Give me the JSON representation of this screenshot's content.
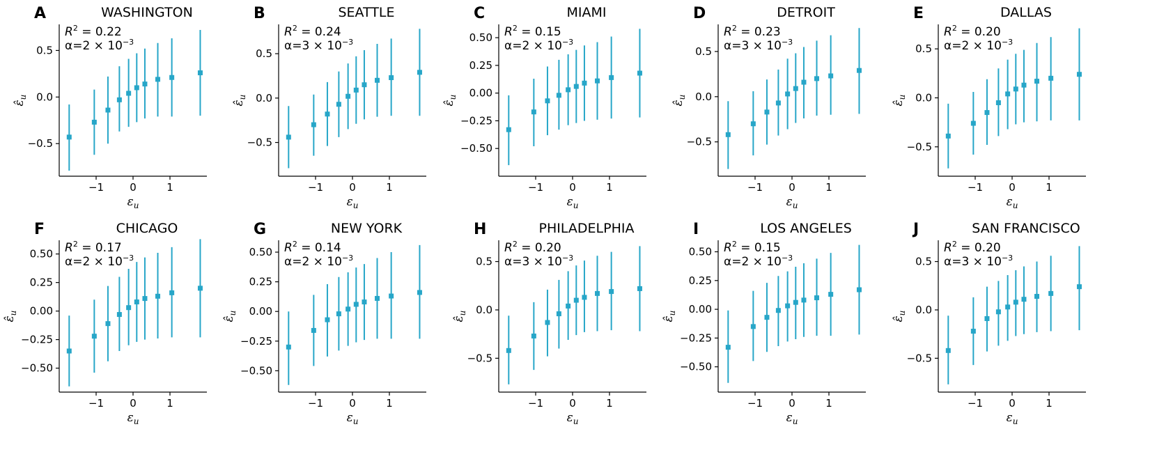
{
  "figure": {
    "marker_color": "#27a6c8",
    "xlabel_base": "ε",
    "xlabel_sub": "u",
    "ylabel_base": "ε̂",
    "ylabel_sub": "u",
    "r2_prefix": "R",
    "r2_exp": "2",
    "alpha_prefix": "α=",
    "alpha_mid": " × 10",
    "alpha_exp": "−3"
  },
  "chart_data": [
    {
      "type": "scatter",
      "letter": "A",
      "title": "WASHINGTON",
      "r2": "= 0.22",
      "alpha_mant": "2",
      "xlim": [
        -2.0,
        2.0
      ],
      "ylim": [
        -0.85,
        0.78
      ],
      "xticks": [
        -1,
        0,
        1
      ],
      "xtick_labels": [
        "−1",
        "0",
        "1"
      ],
      "yticks": [
        -0.5,
        0.0,
        0.5
      ],
      "ytick_labels": [
        "−0.5",
        "0.0",
        "0.5"
      ],
      "x": [
        -1.73,
        -1.05,
        -0.68,
        -0.37,
        -0.12,
        0.1,
        0.32,
        0.67,
        1.05,
        1.82
      ],
      "y": [
        -0.43,
        -0.27,
        -0.14,
        -0.03,
        0.04,
        0.1,
        0.14,
        0.19,
        0.21,
        0.26
      ],
      "yerr_low": [
        -0.79,
        -0.62,
        -0.5,
        -0.37,
        -0.32,
        -0.27,
        -0.23,
        -0.21,
        -0.21,
        -0.2
      ],
      "yerr_high": [
        -0.08,
        0.08,
        0.22,
        0.33,
        0.41,
        0.47,
        0.52,
        0.58,
        0.63,
        0.72
      ]
    },
    {
      "type": "scatter",
      "letter": "B",
      "title": "SEATTLE",
      "r2": "= 0.24",
      "alpha_mant": "3",
      "xlim": [
        -2.0,
        2.0
      ],
      "ylim": [
        -0.88,
        0.83
      ],
      "xticks": [
        -1,
        0,
        1
      ],
      "xtick_labels": [
        "−1",
        "0",
        "1"
      ],
      "yticks": [
        -0.5,
        0.0,
        0.5
      ],
      "ytick_labels": [
        "−0.5",
        "0.0",
        "0.5"
      ],
      "x": [
        -1.73,
        -1.05,
        -0.68,
        -0.37,
        -0.12,
        0.1,
        0.32,
        0.67,
        1.05,
        1.82
      ],
      "y": [
        -0.44,
        -0.3,
        -0.18,
        -0.07,
        0.02,
        0.09,
        0.15,
        0.2,
        0.23,
        0.29
      ],
      "yerr_low": [
        -0.79,
        -0.65,
        -0.54,
        -0.44,
        -0.35,
        -0.29,
        -0.24,
        -0.21,
        -0.2,
        -0.2
      ],
      "yerr_high": [
        -0.09,
        0.04,
        0.18,
        0.3,
        0.39,
        0.47,
        0.54,
        0.61,
        0.67,
        0.78
      ]
    },
    {
      "type": "scatter",
      "letter": "C",
      "title": "MIAMI",
      "r2": "= 0.15",
      "alpha_mant": "2",
      "xlim": [
        -2.0,
        2.0
      ],
      "ylim": [
        -0.75,
        0.62
      ],
      "xticks": [
        -1,
        0,
        1
      ],
      "xtick_labels": [
        "−1",
        "0",
        "1"
      ],
      "yticks": [
        -0.5,
        -0.25,
        0.0,
        0.25,
        0.5
      ],
      "ytick_labels": [
        "−0.50",
        "−0.25",
        "0.00",
        "0.25",
        "0.50"
      ],
      "x": [
        -1.73,
        -1.05,
        -0.68,
        -0.37,
        -0.12,
        0.1,
        0.32,
        0.67,
        1.05,
        1.82
      ],
      "y": [
        -0.33,
        -0.17,
        -0.07,
        -0.02,
        0.03,
        0.06,
        0.09,
        0.11,
        0.14,
        0.18
      ],
      "yerr_low": [
        -0.65,
        -0.48,
        -0.38,
        -0.33,
        -0.29,
        -0.27,
        -0.25,
        -0.24,
        -0.23,
        -0.22
      ],
      "yerr_high": [
        -0.02,
        0.13,
        0.24,
        0.3,
        0.35,
        0.39,
        0.43,
        0.46,
        0.51,
        0.58
      ]
    },
    {
      "type": "scatter",
      "letter": "D",
      "title": "DETROIT",
      "r2": "= 0.23",
      "alpha_mant": "3",
      "xlim": [
        -2.0,
        2.0
      ],
      "ylim": [
        -0.88,
        0.8
      ],
      "xticks": [
        -1,
        0,
        1
      ],
      "xtick_labels": [
        "−1",
        "0",
        "1"
      ],
      "yticks": [
        -0.5,
        0.0,
        0.5
      ],
      "ytick_labels": [
        "−0.5",
        "0.0",
        "0.5"
      ],
      "x": [
        -1.73,
        -1.05,
        -0.68,
        -0.37,
        -0.12,
        0.1,
        0.32,
        0.67,
        1.05,
        1.82
      ],
      "y": [
        -0.42,
        -0.3,
        -0.17,
        -0.07,
        0.03,
        0.09,
        0.16,
        0.2,
        0.23,
        0.29
      ],
      "yerr_low": [
        -0.8,
        -0.65,
        -0.53,
        -0.43,
        -0.36,
        -0.29,
        -0.24,
        -0.21,
        -0.2,
        -0.19
      ],
      "yerr_high": [
        -0.05,
        0.06,
        0.19,
        0.3,
        0.42,
        0.48,
        0.55,
        0.62,
        0.68,
        0.76
      ]
    },
    {
      "type": "scatter",
      "letter": "E",
      "title": "DALLAS",
      "r2": "= 0.20",
      "alpha_mant": "2",
      "xlim": [
        -2.0,
        2.0
      ],
      "ylim": [
        -0.8,
        0.75
      ],
      "xticks": [
        -1,
        0,
        1
      ],
      "xtick_labels": [
        "−1",
        "0",
        "1"
      ],
      "yticks": [
        -0.5,
        0.0,
        0.5
      ],
      "ytick_labels": [
        "−0.5",
        "0.0",
        "0.5"
      ],
      "x": [
        -1.73,
        -1.05,
        -0.68,
        -0.37,
        -0.12,
        0.1,
        0.32,
        0.67,
        1.05,
        1.82
      ],
      "y": [
        -0.39,
        -0.26,
        -0.15,
        -0.05,
        0.04,
        0.09,
        0.13,
        0.17,
        0.2,
        0.24
      ],
      "yerr_low": [
        -0.72,
        -0.58,
        -0.48,
        -0.39,
        -0.32,
        -0.27,
        -0.25,
        -0.24,
        -0.23,
        -0.23
      ],
      "yerr_high": [
        -0.06,
        0.06,
        0.19,
        0.3,
        0.39,
        0.45,
        0.49,
        0.56,
        0.62,
        0.71
      ]
    },
    {
      "type": "scatter",
      "letter": "F",
      "title": "CHICAGO",
      "r2": "= 0.17",
      "alpha_mant": "2",
      "xlim": [
        -2.0,
        2.0
      ],
      "ylim": [
        -0.71,
        0.62
      ],
      "xticks": [
        -1,
        0,
        1
      ],
      "xtick_labels": [
        "−1",
        "0",
        "1"
      ],
      "yticks": [
        -0.5,
        -0.25,
        0.0,
        0.25,
        0.5
      ],
      "ytick_labels": [
        "−0.50",
        "−0.25",
        "0.00",
        "0.25",
        "0.50"
      ],
      "x": [
        -1.73,
        -1.05,
        -0.68,
        -0.37,
        -0.12,
        0.1,
        0.32,
        0.67,
        1.05,
        1.82
      ],
      "y": [
        -0.35,
        -0.22,
        -0.11,
        -0.03,
        0.03,
        0.08,
        0.11,
        0.13,
        0.16,
        0.2
      ],
      "yerr_low": [
        -0.66,
        -0.54,
        -0.44,
        -0.35,
        -0.3,
        -0.27,
        -0.25,
        -0.24,
        -0.23,
        -0.23
      ],
      "yerr_high": [
        -0.04,
        0.1,
        0.22,
        0.3,
        0.37,
        0.43,
        0.47,
        0.51,
        0.56,
        0.63
      ]
    },
    {
      "type": "scatter",
      "letter": "G",
      "title": "NEW YORK",
      "r2": "= 0.14",
      "alpha_mant": "2",
      "xlim": [
        -2.0,
        2.0
      ],
      "ylim": [
        -0.68,
        0.6
      ],
      "xticks": [
        -1,
        0,
        1
      ],
      "xtick_labels": [
        "−1",
        "0",
        "1"
      ],
      "yticks": [
        -0.5,
        -0.25,
        0.0,
        0.25,
        0.5
      ],
      "ytick_labels": [
        "−0.50",
        "−0.25",
        "0.00",
        "0.25",
        "0.50"
      ],
      "x": [
        -1.73,
        -1.05,
        -0.68,
        -0.37,
        -0.12,
        0.1,
        0.32,
        0.67,
        1.05,
        1.82
      ],
      "y": [
        -0.3,
        -0.16,
        -0.07,
        -0.02,
        0.02,
        0.06,
        0.08,
        0.11,
        0.13,
        0.16
      ],
      "yerr_low": [
        -0.62,
        -0.46,
        -0.38,
        -0.33,
        -0.29,
        -0.26,
        -0.24,
        -0.23,
        -0.23,
        -0.23
      ],
      "yerr_high": [
        0.0,
        0.14,
        0.23,
        0.29,
        0.33,
        0.37,
        0.4,
        0.45,
        0.5,
        0.56
      ]
    },
    {
      "type": "scatter",
      "letter": "H",
      "title": "PHILADELPHIA",
      "r2": "= 0.20",
      "alpha_mant": "3",
      "xlim": [
        -2.0,
        2.0
      ],
      "ylim": [
        -0.85,
        0.72
      ],
      "xticks": [
        -1,
        0,
        1
      ],
      "xtick_labels": [
        "−1",
        "0",
        "1"
      ],
      "yticks": [
        -0.5,
        0.0,
        0.5
      ],
      "ytick_labels": [
        "−0.5",
        "0.0",
        "0.5"
      ],
      "x": [
        -1.73,
        -1.05,
        -0.68,
        -0.37,
        -0.12,
        0.1,
        0.32,
        0.67,
        1.05,
        1.82
      ],
      "y": [
        -0.42,
        -0.27,
        -0.13,
        -0.04,
        0.04,
        0.1,
        0.13,
        0.17,
        0.19,
        0.22
      ],
      "yerr_low": [
        -0.77,
        -0.62,
        -0.48,
        -0.4,
        -0.31,
        -0.26,
        -0.23,
        -0.22,
        -0.21,
        -0.22
      ],
      "yerr_high": [
        -0.06,
        0.08,
        0.21,
        0.31,
        0.4,
        0.46,
        0.51,
        0.56,
        0.6,
        0.66
      ]
    },
    {
      "type": "scatter",
      "letter": "I",
      "title": "LOS ANGELES",
      "r2": "= 0.15",
      "alpha_mant": "2",
      "xlim": [
        -2.0,
        2.0
      ],
      "ylim": [
        -0.72,
        0.6
      ],
      "xticks": [
        -1,
        0,
        1
      ],
      "xtick_labels": [
        "−1",
        "0",
        "1"
      ],
      "yticks": [
        -0.5,
        -0.25,
        0.0,
        0.25,
        0.5
      ],
      "ytick_labels": [
        "−0.50",
        "−0.25",
        "0.00",
        "0.25",
        "0.50"
      ],
      "x": [
        -1.73,
        -1.05,
        -0.68,
        -0.37,
        -0.12,
        0.1,
        0.32,
        0.67,
        1.05,
        1.82
      ],
      "y": [
        -0.33,
        -0.15,
        -0.07,
        -0.01,
        0.03,
        0.06,
        0.08,
        0.1,
        0.13,
        0.17
      ],
      "yerr_low": [
        -0.64,
        -0.45,
        -0.37,
        -0.32,
        -0.28,
        -0.26,
        -0.24,
        -0.23,
        -0.23,
        -0.22
      ],
      "yerr_high": [
        -0.01,
        0.16,
        0.23,
        0.29,
        0.33,
        0.37,
        0.4,
        0.44,
        0.49,
        0.56
      ]
    },
    {
      "type": "scatter",
      "letter": "J",
      "title": "SAN FRANCISCO",
      "r2": "= 0.20",
      "alpha_mant": "3",
      "xlim": [
        -2.0,
        2.0
      ],
      "ylim": [
        -0.85,
        0.72
      ],
      "xticks": [
        -1,
        0,
        1
      ],
      "xtick_labels": [
        "−1",
        "0",
        "1"
      ],
      "yticks": [
        -0.5,
        0.0,
        0.5
      ],
      "ytick_labels": [
        "−0.5",
        "0.0",
        "0.5"
      ],
      "x": [
        -1.73,
        -1.05,
        -0.68,
        -0.37,
        -0.12,
        0.1,
        0.32,
        0.67,
        1.05,
        1.82
      ],
      "y": [
        -0.42,
        -0.22,
        -0.09,
        -0.02,
        0.03,
        0.08,
        0.11,
        0.14,
        0.17,
        0.24
      ],
      "yerr_low": [
        -0.77,
        -0.57,
        -0.43,
        -0.37,
        -0.32,
        -0.27,
        -0.25,
        -0.23,
        -0.22,
        -0.21
      ],
      "yerr_high": [
        -0.06,
        0.13,
        0.24,
        0.3,
        0.36,
        0.41,
        0.45,
        0.5,
        0.56,
        0.66
      ]
    }
  ]
}
